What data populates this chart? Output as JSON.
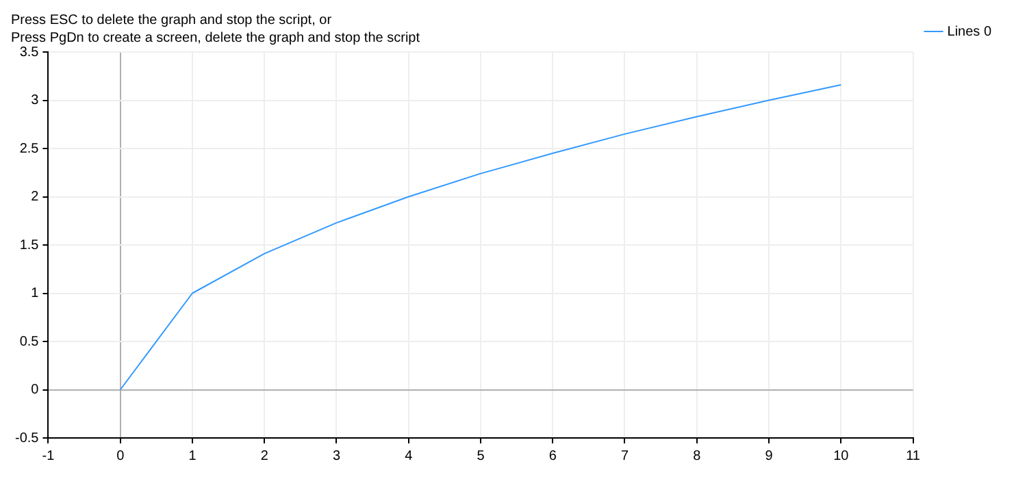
{
  "chart_data": {
    "type": "line",
    "title": "Press ESC to delete the graph and stop the script, or",
    "subtitle": "Press PgDn to create a screen, delete the graph and stop the script",
    "x": [
      0,
      1,
      2,
      3,
      4,
      5,
      6,
      7,
      8,
      9,
      10
    ],
    "series": [
      {
        "name": "Lines 0",
        "color": "#3399ff",
        "values": [
          0,
          1,
          1.41,
          1.73,
          2,
          2.24,
          2.45,
          2.65,
          2.83,
          3,
          3.16
        ]
      }
    ],
    "xlim": [
      -1,
      11
    ],
    "xticks": [
      -1,
      0,
      1,
      2,
      3,
      4,
      5,
      6,
      7,
      8,
      9,
      10,
      11
    ],
    "ylim": [
      -0.5,
      3.5
    ],
    "yticks": [
      -0.5,
      0,
      0.5,
      1,
      1.5,
      2,
      2.5,
      3,
      3.5
    ],
    "grid": true,
    "legend": "right",
    "marker": "none",
    "line_style": "solid"
  }
}
